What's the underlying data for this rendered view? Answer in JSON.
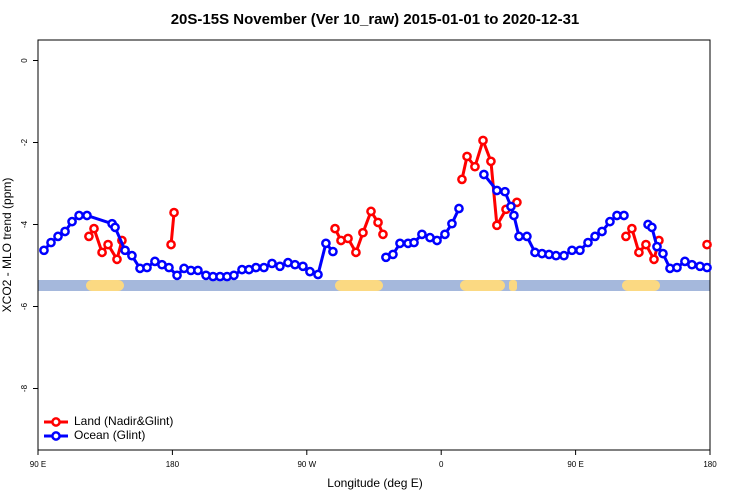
{
  "chart_data": {
    "type": "line",
    "title": "20S-15S November (Ver 10_raw)   2015-01-01 to 2020-12-31",
    "x_label": "Longitude (deg E)",
    "y_label": "XCO2 - MLO trend (ppm)",
    "xlim": [
      90,
      540
    ],
    "ylim": [
      -9.5,
      0.5
    ],
    "xticks": [
      {
        "value": 90,
        "label": "90 E"
      },
      {
        "value": 180,
        "label": "180"
      },
      {
        "value": 270,
        "label": "90 W"
      },
      {
        "value": 360,
        "label": "0"
      },
      {
        "value": 450,
        "label": "90 E"
      },
      {
        "value": 540,
        "label": "180"
      }
    ],
    "yticks": [
      0,
      -2,
      -4,
      -6,
      -8
    ],
    "legend": "bottom-left",
    "series": [
      {
        "name": "Land (Nadir&Glint)",
        "color": "#ff0000",
        "x": [
          124.1,
          127.5,
          132.9,
          136.9,
          142.9,
          146.2,
          null,
          179.1,
          181.1,
          null,
          288.9,
          292.9,
          297.6,
          302.9,
          307.6,
          313.0,
          317.7,
          321.0,
          null,
          373.9,
          377.3,
          382.6,
          388.0,
          393.3,
          397.3,
          403.4,
          410.7,
          null,
          483.7,
          487.7,
          492.4,
          497.1,
          502.5,
          505.8,
          null,
          538.0
        ],
        "values": [
          -4.29,
          -4.1,
          -4.68,
          -4.49,
          -4.85,
          -4.39,
          null,
          -4.49,
          -3.71,
          null,
          -4.1,
          -4.39,
          -4.34,
          -4.68,
          -4.2,
          -3.68,
          -3.95,
          -4.24,
          null,
          -2.9,
          -2.34,
          -2.59,
          -1.95,
          -2.46,
          -4.02,
          -3.63,
          -3.46,
          null,
          -4.29,
          -4.1,
          -4.68,
          -4.49,
          -4.85,
          -4.39,
          null,
          -4.49
        ]
      },
      {
        "name": "Ocean (Glint)",
        "color": "#0000ff",
        "x": [
          94.0,
          98.7,
          103.4,
          108.1,
          112.8,
          117.5,
          122.8,
          139.6,
          141.6,
          148.3,
          152.9,
          158.3,
          163.0,
          168.3,
          173.0,
          177.7,
          183.1,
          187.8,
          192.4,
          197.1,
          202.5,
          207.2,
          211.9,
          216.6,
          221.2,
          226.6,
          231.3,
          236.0,
          241.3,
          246.7,
          252.0,
          257.4,
          262.1,
          267.4,
          272.1,
          277.5,
          282.8,
          287.5,
          null,
          323.0,
          327.7,
          332.4,
          337.8,
          341.8,
          347.1,
          352.5,
          357.2,
          362.5,
          367.2,
          371.9,
          null,
          388.6,
          397.3,
          402.7,
          406.7,
          408.7,
          412.1,
          417.4,
          422.8,
          427.5,
          432.2,
          436.9,
          442.2,
          447.6,
          452.9,
          458.3,
          463.0,
          467.7,
          473.0,
          477.7,
          482.4,
          null,
          498.5,
          501.1,
          504.5,
          508.5,
          513.2,
          517.9,
          523.2,
          527.9,
          533.3,
          538.0
        ],
        "values": [
          -4.63,
          -4.44,
          -4.29,
          -4.17,
          -3.93,
          -3.78,
          -3.78,
          -3.98,
          -4.07,
          -4.63,
          -4.76,
          -5.07,
          -5.05,
          -4.9,
          -4.98,
          -5.05,
          -5.24,
          -5.07,
          -5.12,
          -5.12,
          -5.24,
          -5.27,
          -5.27,
          -5.27,
          -5.24,
          -5.1,
          -5.1,
          -5.05,
          -5.05,
          -4.95,
          -5.02,
          -4.93,
          -4.98,
          -5.02,
          -5.15,
          -5.22,
          -4.46,
          -4.66,
          null,
          -4.8,
          -4.73,
          -4.46,
          -4.46,
          -4.44,
          -4.24,
          -4.32,
          -4.39,
          -4.24,
          -3.98,
          -3.61,
          null,
          -2.78,
          -3.17,
          -3.2,
          -3.56,
          -3.78,
          -4.29,
          -4.29,
          -4.68,
          -4.71,
          -4.73,
          -4.76,
          -4.76,
          -4.63,
          -4.63,
          -4.44,
          -4.29,
          -4.17,
          -3.93,
          -3.78,
          -3.78,
          null,
          -4.0,
          -4.07,
          -4.54,
          -4.71,
          -5.07,
          -5.05,
          -4.9,
          -4.98,
          -5.02,
          -5.05
        ]
      }
    ]
  }
}
